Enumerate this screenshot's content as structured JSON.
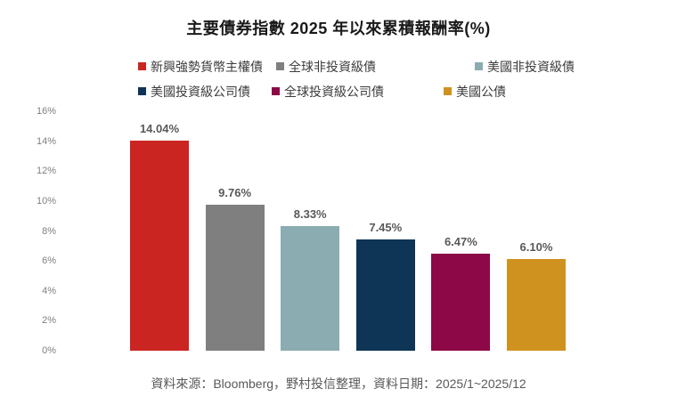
{
  "title": "主要債券指數 2025 年以來累積報酬率(%)",
  "footer": "資料來源：Bloomberg，野村投信整理，資料日期：2025/1~2025/12",
  "chart_data": {
    "type": "bar",
    "title": "主要債券指數 2025 年以來累積報酬率(%)",
    "categories": [
      "新興強勢貨幣主權債",
      "全球非投資級債",
      "美國非投資級債",
      "美國投資級公司債",
      "全球投資級公司債",
      "美國公債"
    ],
    "values": [
      14.04,
      9.76,
      8.33,
      7.45,
      6.47,
      6.1
    ],
    "value_labels": [
      "14.04%",
      "9.76%",
      "8.33%",
      "7.45%",
      "6.47%",
      "6.10%"
    ],
    "colors": [
      "#CB2521",
      "#7F7F7F",
      "#8BACB1",
      "#0E3456",
      "#8C0846",
      "#D0921F"
    ],
    "ylim": [
      0,
      16
    ],
    "ytick_step": 2,
    "yticks": [
      "0%",
      "2%",
      "4%",
      "6%",
      "8%",
      "10%",
      "12%",
      "14%",
      "16%"
    ],
    "grid": false,
    "legend_position": "top",
    "legend_rows": [
      [
        0,
        1,
        2
      ],
      [
        3,
        4,
        5
      ]
    ],
    "xlabel": "",
    "ylabel": ""
  }
}
